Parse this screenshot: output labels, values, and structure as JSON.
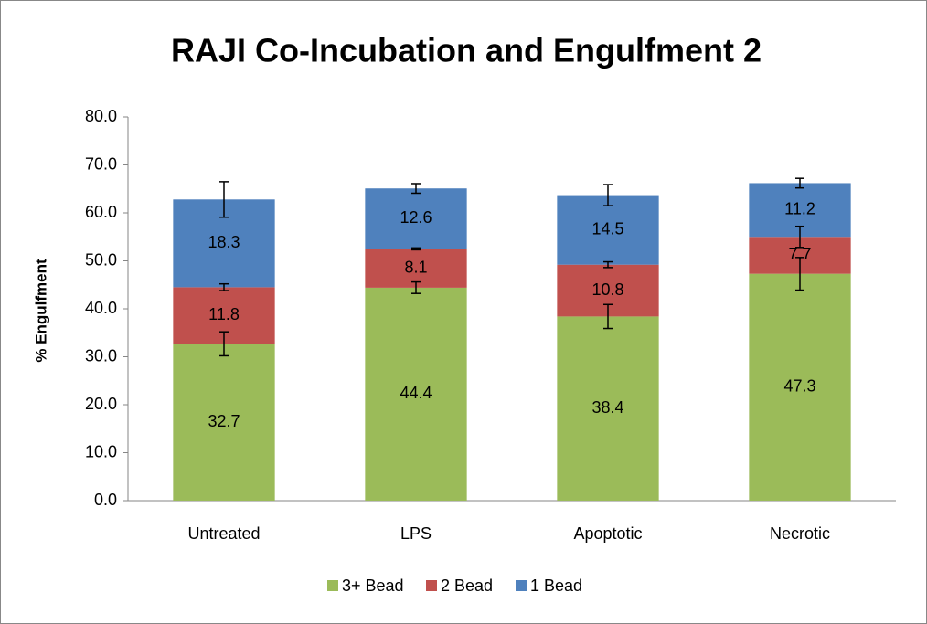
{
  "chart_data": {
    "type": "stacked_bar",
    "title": "RAJI Co-Incubation and Engulfment 2",
    "y_label": "% Engulfment",
    "categories": [
      "Untreated",
      "LPS",
      "Apoptotic",
      "Necrotic"
    ],
    "series": [
      {
        "name": "3+ Bead",
        "color": "#9bbb59",
        "values": [
          32.7,
          44.4,
          38.4,
          47.3
        ],
        "errors": [
          2.5,
          1.2,
          2.5,
          3.4
        ]
      },
      {
        "name": "2 Bead",
        "color": "#c0504d",
        "values": [
          11.8,
          8.1,
          10.8,
          7.7
        ],
        "errors": [
          0.7,
          0.2,
          0.6,
          2.2
        ]
      },
      {
        "name": "1 Bead",
        "color": "#4f81bd",
        "values": [
          18.3,
          12.6,
          14.5,
          11.2
        ],
        "errors": [
          3.7,
          1.0,
          2.2,
          1.0
        ]
      }
    ],
    "ylim": [
      0,
      80
    ],
    "yticks": [
      {
        "value": 0,
        "label": "0.0"
      },
      {
        "value": 10,
        "label": "10.0"
      },
      {
        "value": 20,
        "label": "20.0"
      },
      {
        "value": 30,
        "label": "30.0"
      },
      {
        "value": 40,
        "label": "40.0"
      },
      {
        "value": 50,
        "label": "50.0"
      },
      {
        "value": 60,
        "label": "60.0"
      },
      {
        "value": 70,
        "label": "70.0"
      },
      {
        "value": 80,
        "label": "80.0"
      }
    ],
    "legend": "bottom"
  }
}
